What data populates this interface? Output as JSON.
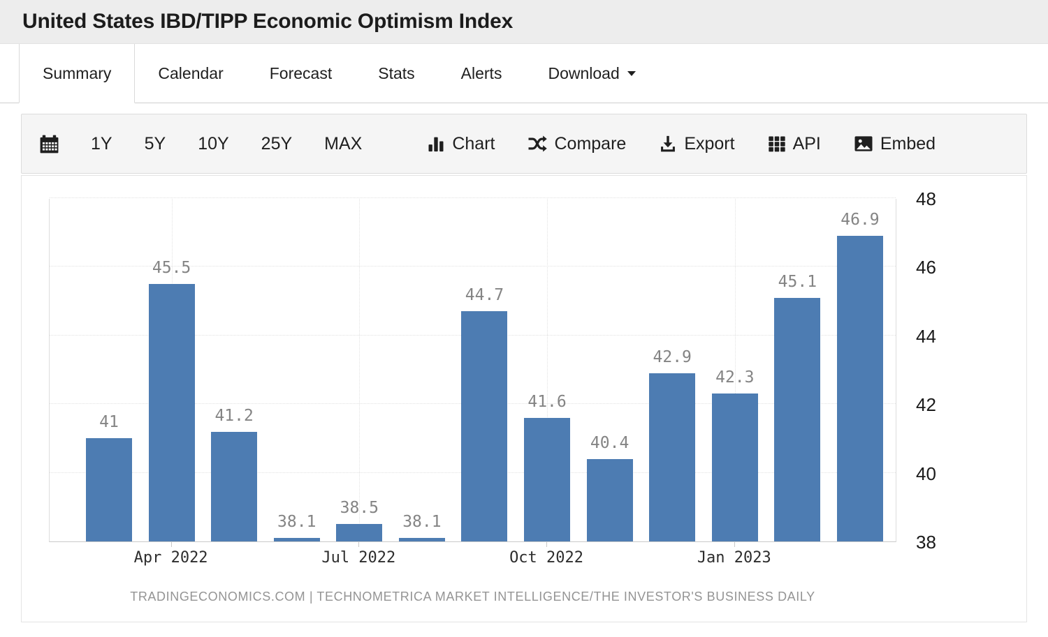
{
  "header": {
    "title": "United States IBD/TIPP Economic Optimism Index"
  },
  "tabs": {
    "items": [
      {
        "label": "Summary",
        "active": true
      },
      {
        "label": "Calendar"
      },
      {
        "label": "Forecast"
      },
      {
        "label": "Stats"
      },
      {
        "label": "Alerts"
      },
      {
        "label": "Download",
        "has_caret": true
      }
    ]
  },
  "toolbar": {
    "ranges": [
      "1Y",
      "5Y",
      "10Y",
      "25Y",
      "MAX"
    ],
    "actions": [
      {
        "icon": "chart-icon",
        "label": "Chart"
      },
      {
        "icon": "compare-icon",
        "label": "Compare"
      },
      {
        "icon": "export-icon",
        "label": "Export"
      },
      {
        "icon": "api-icon",
        "label": "API"
      },
      {
        "icon": "embed-icon",
        "label": "Embed"
      }
    ]
  },
  "chart_data": {
    "type": "bar",
    "title": "United States IBD/TIPP Economic Optimism Index",
    "values": [
      41,
      45.5,
      41.2,
      38.1,
      38.5,
      38.1,
      44.7,
      41.6,
      40.4,
      42.9,
      42.3,
      45.1,
      46.9
    ],
    "bar_labels": [
      "41",
      "45.5",
      "41.2",
      "38.1",
      "38.5",
      "38.1",
      "44.7",
      "41.6",
      "40.4",
      "42.9",
      "42.3",
      "45.1",
      "46.9"
    ],
    "x_ticks": [
      {
        "bar_index": 1,
        "label": "Apr 2022"
      },
      {
        "bar_index": 4,
        "label": "Jul 2022"
      },
      {
        "bar_index": 7,
        "label": "Oct 2022"
      },
      {
        "bar_index": 10,
        "label": "Jan 2023"
      }
    ],
    "y_ticks": [
      38,
      40,
      42,
      44,
      46,
      48
    ],
    "ylim": [
      38,
      48
    ],
    "y_axis_side": "right",
    "grid": true,
    "legend": false,
    "bar_color": "#4d7cb2",
    "value_label_color": "#848484",
    "footer": "TRADINGECONOMICS.COM | TECHNOMETRICA MARKET INTELLIGENCE/THE INVESTOR'S BUSINESS DAILY"
  }
}
